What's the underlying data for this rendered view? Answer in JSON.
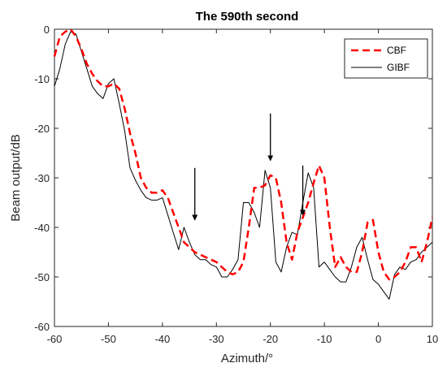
{
  "chart_data": {
    "type": "line",
    "title": "The 590th second",
    "xlabel": "Azimuth/°",
    "ylabel": "Beam output/dB",
    "xlim": [
      -60,
      10
    ],
    "ylim": [
      -60,
      0
    ],
    "xticks": [
      -60,
      -50,
      -40,
      -30,
      -20,
      -10,
      0,
      10
    ],
    "yticks": [
      0,
      -10,
      -20,
      -30,
      -40,
      -50,
      -60
    ],
    "grid": false,
    "legend_position": "top-right",
    "series": [
      {
        "name": "CBF",
        "color": "#ff0000",
        "dash": "dashed",
        "x": [
          -60,
          -59,
          -58,
          -57,
          -56,
          -55,
          -54,
          -53,
          -52,
          -51,
          -50,
          -49,
          -48,
          -47,
          -46,
          -45,
          -44,
          -43,
          -42,
          -41,
          -40,
          -39,
          -38,
          -37,
          -36,
          -35,
          -34,
          -33,
          -32,
          -31,
          -30,
          -29,
          -28,
          -27,
          -26,
          -25,
          -24,
          -23,
          -22,
          -21,
          -20,
          -19,
          -18,
          -17,
          -16,
          -15,
          -14,
          -13,
          -12,
          -11,
          -10,
          -9,
          -8,
          -7,
          -6,
          -5,
          -4,
          -3,
          -2,
          -1,
          0,
          1,
          2,
          3,
          4,
          5,
          6,
          7,
          8,
          9,
          10
        ],
        "y": [
          -5.5,
          -1.5,
          -0.5,
          0,
          -1.5,
          -4,
          -7,
          -9,
          -10.5,
          -11.5,
          -11.5,
          -11,
          -12,
          -16,
          -21,
          -25,
          -30,
          -32,
          -33,
          -33,
          -32.5,
          -34,
          -37,
          -40,
          -43,
          -44,
          -45,
          -45.5,
          -46,
          -46.5,
          -47,
          -48,
          -49,
          -49.5,
          -49,
          -47,
          -40,
          -32,
          -32,
          -31.5,
          -29.5,
          -30,
          -35,
          -43,
          -46.5,
          -41,
          -38,
          -35,
          -31,
          -27.5,
          -30,
          -40,
          -48,
          -46,
          -48,
          -49,
          -49,
          -45,
          -39,
          -38.5,
          -45,
          -49,
          -50.5,
          -50,
          -49,
          -47,
          -44,
          -44,
          -47,
          -43,
          -38
        ]
      },
      {
        "name": "GIBF",
        "color": "#000000",
        "dash": "solid",
        "x": [
          -60,
          -59,
          -58,
          -57,
          -56,
          -55,
          -54,
          -53,
          -52,
          -51,
          -50,
          -49,
          -48,
          -47,
          -46,
          -45,
          -44,
          -43,
          -42,
          -41,
          -40,
          -39,
          -38,
          -37,
          -36,
          -35,
          -34,
          -33,
          -32,
          -31,
          -30,
          -29,
          -28,
          -27,
          -26,
          -25,
          -24,
          -23,
          -22,
          -21,
          -20,
          -19,
          -18,
          -17,
          -16,
          -15,
          -14,
          -13,
          -12,
          -11,
          -10,
          -9,
          -8,
          -7,
          -6,
          -5,
          -4,
          -3,
          -2,
          -1,
          0,
          1,
          2,
          3,
          4,
          5,
          6,
          7,
          8,
          9,
          10
        ],
        "y": [
          -11.5,
          -8,
          -3,
          -0.5,
          -1,
          -4.5,
          -8,
          -11.5,
          -13,
          -14,
          -11,
          -10,
          -15,
          -20.5,
          -28,
          -30.5,
          -32.5,
          -34,
          -34.5,
          -34.5,
          -34,
          -37.5,
          -41,
          -44.5,
          -40,
          -43,
          -45.5,
          -46.5,
          -46.5,
          -47.5,
          -48,
          -50,
          -50,
          -48.5,
          -46.5,
          -35,
          -35,
          -37,
          -40,
          -28.5,
          -32,
          -47,
          -49,
          -44,
          -41,
          -41.5,
          -35,
          -29,
          -32,
          -48,
          -47,
          -48.5,
          -50,
          -51,
          -51,
          -48,
          -44,
          -42,
          -46.5,
          -50.5,
          -51.5,
          -53,
          -54.5,
          -49.5,
          -48,
          -48.5,
          -47,
          -46.5,
          -45,
          -44,
          -43
        ]
      }
    ],
    "annotations": [
      {
        "type": "arrow",
        "from": [
          -34,
          -28
        ],
        "to": [
          -34,
          -38.5
        ]
      },
      {
        "type": "arrow",
        "from": [
          -20,
          -17
        ],
        "to": [
          -20,
          -26.5
        ]
      },
      {
        "type": "arrow",
        "from": [
          -14,
          -27.5
        ],
        "to": [
          -14,
          -37.5
        ]
      }
    ]
  }
}
